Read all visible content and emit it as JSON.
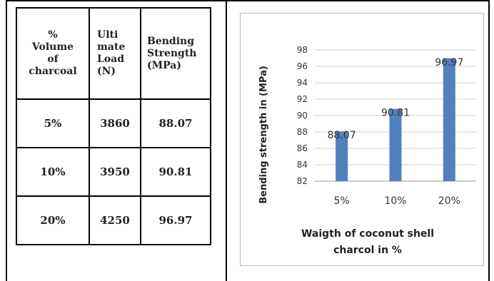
{
  "table": {
    "headers": [
      "%\nVolume\nof\ncharcoal",
      "Ulti\nmate\nLoad\n(N)",
      "Bending\nStrength\n(MPa)"
    ],
    "rows": [
      [
        "5%",
        "3860",
        "88.07"
      ],
      [
        "10%",
        "3950",
        "90.81"
      ],
      [
        "20%",
        "4250",
        "96.97"
      ]
    ]
  },
  "chart_data": {
    "type": "bar",
    "categories": [
      "5%",
      "10%",
      "20%"
    ],
    "values": [
      88.07,
      90.81,
      96.97
    ],
    "data_labels": [
      "88.07",
      "90.81",
      "96.97"
    ],
    "title": "",
    "xlabel": "Waigth of coconut shell charcol in %",
    "xlabel_lines": [
      "Waigth of coconut shell",
      "charcol in %"
    ],
    "ylabel": "Bending strength  in (MPa)",
    "ylim": [
      82,
      98
    ],
    "yticks": [
      82,
      84,
      86,
      88,
      90,
      92,
      94,
      96,
      98
    ],
    "grid": true,
    "legend": "none",
    "bar_color": "#4f81bd"
  }
}
